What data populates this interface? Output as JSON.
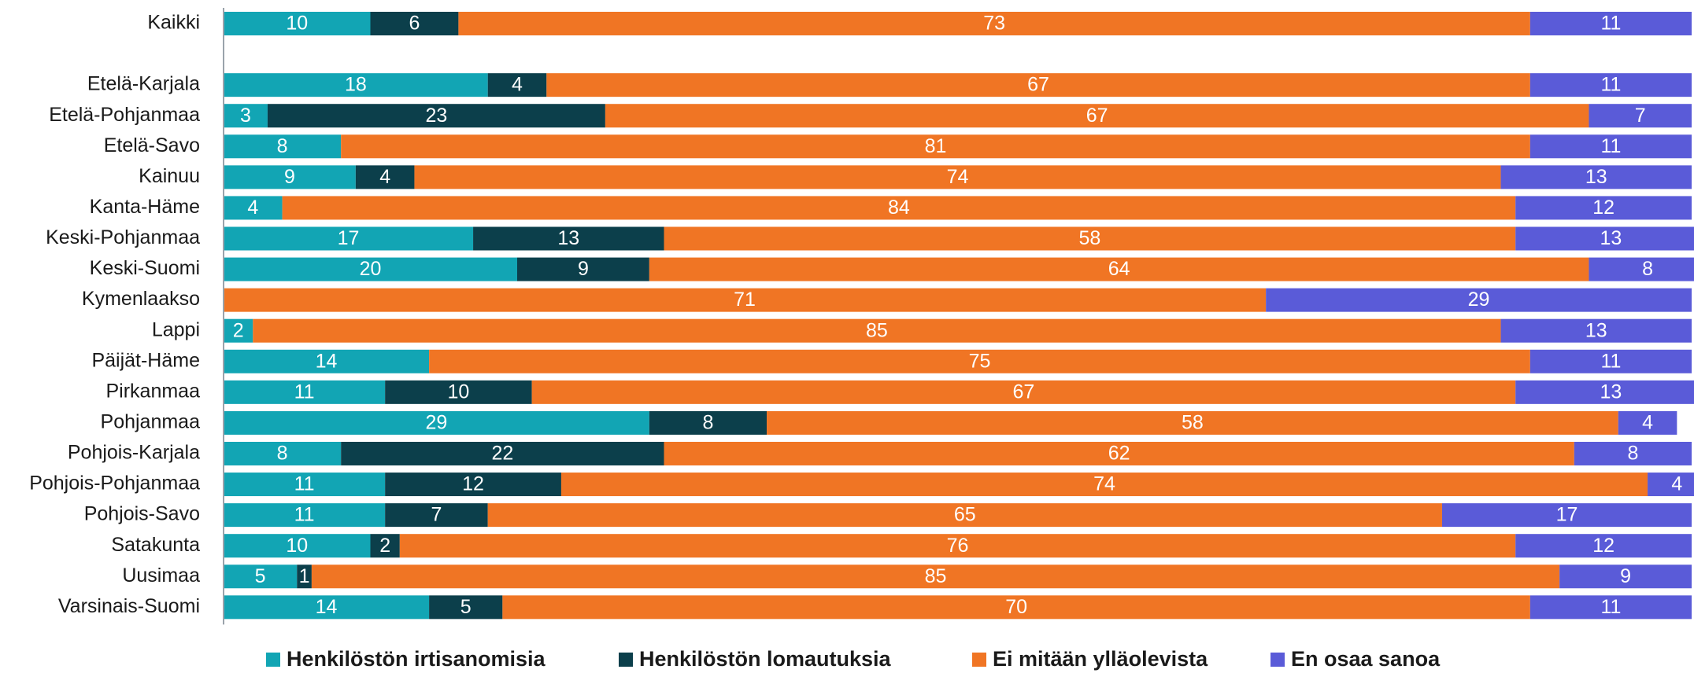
{
  "chart_data": {
    "type": "bar",
    "orientation": "horizontal",
    "stacked": true,
    "categories": [
      "Kaikki",
      null,
      "Etelä-Karjala",
      "Etelä-Pohjanmaa",
      "Etelä-Savo",
      "Kainuu",
      "Kanta-Häme",
      "Keski-Pohjanmaa",
      "Keski-Suomi",
      "Kymenlaakso",
      "Lappi",
      "Päijät-Häme",
      "Pirkanmaa",
      "Pohjanmaa",
      "Pohjois-Karjala",
      "Pohjois-Pohjanmaa",
      "Pohjois-Savo",
      "Satakunta",
      "Uusimaa",
      "Varsinais-Suomi"
    ],
    "series": [
      {
        "name": "Henkilöstön irtisanomisia",
        "color": "#12a5b4",
        "values": [
          10,
          null,
          18,
          3,
          8,
          9,
          4,
          17,
          20,
          null,
          2,
          14,
          11,
          29,
          8,
          11,
          11,
          10,
          5,
          14
        ]
      },
      {
        "name": "Henkilöstön lomautuksia",
        "color": "#0c3f4b",
        "values": [
          6,
          null,
          4,
          23,
          null,
          4,
          null,
          13,
          9,
          null,
          null,
          null,
          10,
          8,
          22,
          12,
          7,
          2,
          1,
          5
        ]
      },
      {
        "name": "Ei mitään ylläolevista",
        "color": "#f07524",
        "values": [
          73,
          null,
          67,
          67,
          81,
          74,
          84,
          58,
          64,
          71,
          85,
          75,
          67,
          58,
          62,
          74,
          65,
          76,
          85,
          70
        ]
      },
      {
        "name": "En osaa sanoa",
        "color": "#5a5bd8",
        "values": [
          11,
          null,
          11,
          7,
          11,
          13,
          12,
          13,
          8,
          29,
          13,
          11,
          13,
          4,
          8,
          4,
          17,
          12,
          9,
          11
        ]
      }
    ],
    "xlim": [
      0,
      100
    ],
    "legend": "bottom"
  }
}
